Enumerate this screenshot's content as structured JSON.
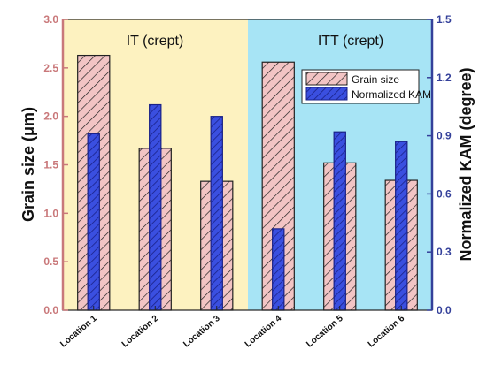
{
  "chart_data": {
    "type": "bar",
    "categories": [
      "Location 1",
      "Location 2",
      "Location 3",
      "Location 4",
      "Location 5",
      "Location 6"
    ],
    "series": [
      {
        "name": "Grain size",
        "axis": "left",
        "values": [
          2.63,
          1.67,
          1.33,
          2.56,
          1.52,
          1.34
        ]
      },
      {
        "name": "Normalized KAM",
        "axis": "right",
        "values": [
          0.91,
          1.06,
          1.0,
          0.42,
          0.92,
          0.87
        ]
      }
    ],
    "regions": [
      {
        "label": "IT (crept)",
        "categories": [
          "Location 1",
          "Location 2",
          "Location 3"
        ],
        "color": "#fdf2c0"
      },
      {
        "label": "ITT (crept)",
        "categories": [
          "Location 4",
          "Location 5",
          "Location 6"
        ],
        "color": "#a7e4f5"
      }
    ],
    "ylabel_left": "Grain size (μm)",
    "ylabel_right": "Normalized KAM (degree)",
    "ylim_left": [
      0,
      3.0
    ],
    "ylim_right": [
      0,
      1.5
    ],
    "yticks_left": [
      "0.0",
      "0.5",
      "1.0",
      "1.5",
      "2.0",
      "2.5",
      "3.0"
    ],
    "yticks_right": [
      "0.0",
      "0.3",
      "0.6",
      "0.9",
      "1.2",
      "1.5"
    ],
    "legend_position": "top-right",
    "grid": false,
    "colors": {
      "grain_fill": "#f2c4c4",
      "grain_hatch": "#222222",
      "kam_fill": "#3a4fe0",
      "kam_hatch": "#1a2288",
      "left_axis": "#c9787a",
      "right_axis": "#34409a"
    }
  }
}
